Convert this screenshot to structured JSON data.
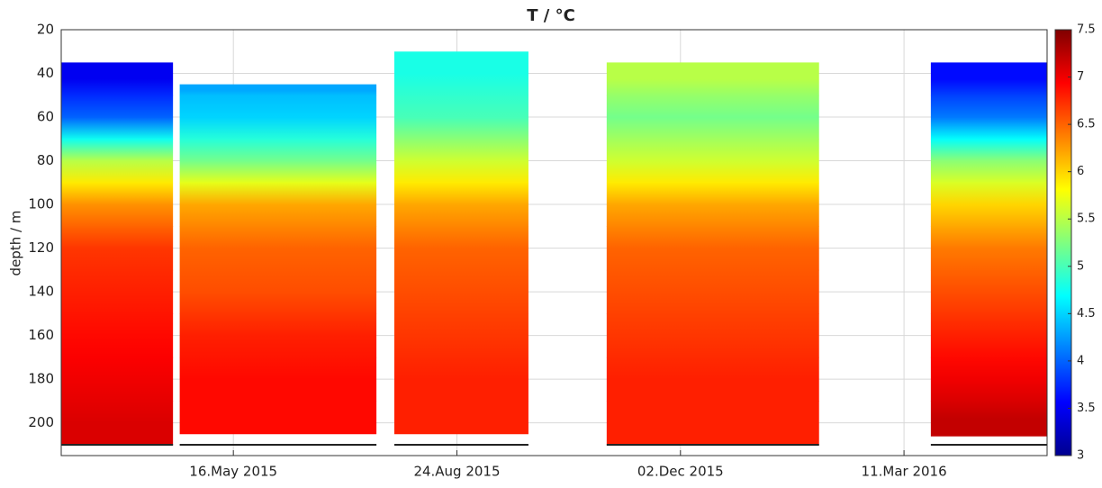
{
  "chart_data": {
    "type": "heatmap",
    "title": "T / °C",
    "y_label": "depth / m",
    "xlim": [
      "2015-02-28",
      "2016-05-14"
    ],
    "xticks": [
      {
        "value": "2015-05-16",
        "label": "16.May 2015"
      },
      {
        "value": "2015-08-24",
        "label": "24.Aug 2015"
      },
      {
        "value": "2015-12-02",
        "label": "02.Dec 2015"
      },
      {
        "value": "2016-03-11",
        "label": "11.Mar 2016"
      }
    ],
    "ylim": [
      20,
      215
    ],
    "y_reversed": true,
    "yticks": [
      20,
      40,
      60,
      80,
      100,
      120,
      140,
      160,
      180,
      200
    ],
    "grid": true,
    "depths": [
      40,
      60,
      80,
      100,
      120,
      140,
      160,
      180,
      200
    ],
    "segments": [
      {
        "start": "2015-02-28",
        "end": "2015-04-19",
        "top": 35,
        "bottom": 210,
        "values": [
          3.5,
          4,
          5.5,
          6.3,
          6.7,
          6.8,
          6.9,
          7,
          7.1
        ]
      },
      {
        "start": "2015-04-22",
        "end": "2015-07-19",
        "top": 45,
        "bottom": 205,
        "values": [
          4.3,
          4.5,
          5.2,
          6.2,
          6.5,
          6.6,
          6.8,
          6.9,
          6.9
        ]
      },
      {
        "start": "2015-07-27",
        "end": "2015-09-25",
        "top": 30,
        "bottom": 205,
        "values": [
          4.8,
          5,
          5.6,
          6.2,
          6.5,
          6.6,
          6.7,
          6.8,
          6.8
        ]
      },
      {
        "start": "2015-10-30",
        "end": "2016-02-02",
        "top": 35,
        "bottom": 210,
        "values": [
          5.5,
          5.2,
          5.6,
          6.2,
          6.5,
          6.6,
          6.7,
          6.8,
          6.8
        ]
      },
      {
        "start": "2016-03-23",
        "end": "2016-05-14",
        "top": 35,
        "bottom": 206,
        "values": [
          3.6,
          4.1,
          5.3,
          6,
          6.4,
          6.6,
          6.8,
          7,
          7.2
        ]
      }
    ],
    "clim": [
      3,
      7.5
    ],
    "cticks": [
      3,
      3.5,
      4,
      4.5,
      5,
      5.5,
      6,
      6.5,
      7,
      7.5
    ]
  }
}
